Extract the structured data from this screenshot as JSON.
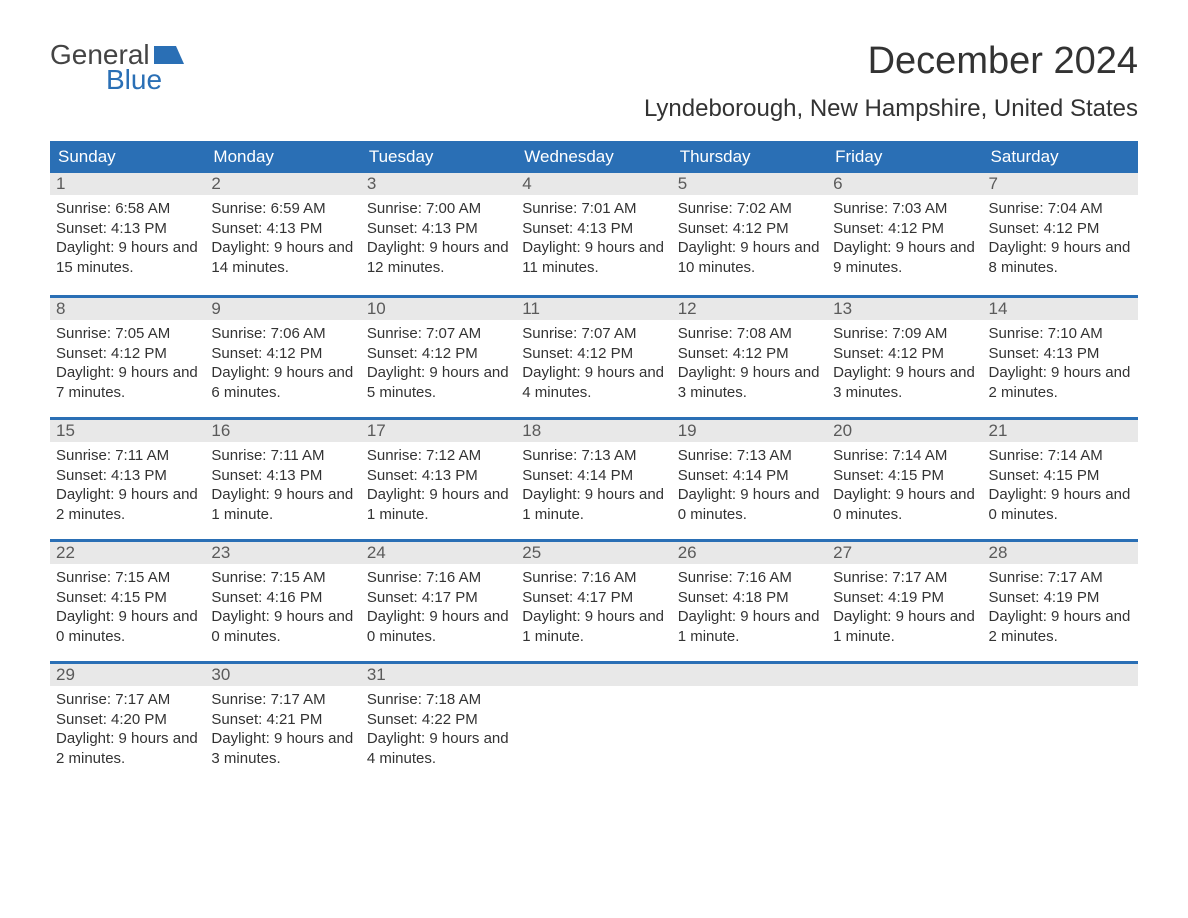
{
  "brand": {
    "text_general": "General",
    "text_blue": "Blue",
    "logo_color": "#2a6fb5",
    "text_color": "#444444"
  },
  "title": "December 2024",
  "location": "Lyndeborough, New Hampshire, United States",
  "colors": {
    "header_bg": "#2a6fb5",
    "header_fg": "#ffffff",
    "daynum_bg": "#e8e8e8",
    "daynum_fg": "#5a5a5a",
    "body_fg": "#333333",
    "page_bg": "#ffffff",
    "week_border": "#2a6fb5"
  },
  "fonts": {
    "title_size": 38,
    "location_size": 24,
    "dayheader_size": 17,
    "daynum_size": 17,
    "body_size": 15
  },
  "day_headers": [
    "Sunday",
    "Monday",
    "Tuesday",
    "Wednesday",
    "Thursday",
    "Friday",
    "Saturday"
  ],
  "weeks": [
    [
      {
        "n": "1",
        "sunrise": "Sunrise: 6:58 AM",
        "sunset": "Sunset: 4:13 PM",
        "daylight": "Daylight: 9 hours and 15 minutes."
      },
      {
        "n": "2",
        "sunrise": "Sunrise: 6:59 AM",
        "sunset": "Sunset: 4:13 PM",
        "daylight": "Daylight: 9 hours and 14 minutes."
      },
      {
        "n": "3",
        "sunrise": "Sunrise: 7:00 AM",
        "sunset": "Sunset: 4:13 PM",
        "daylight": "Daylight: 9 hours and 12 minutes."
      },
      {
        "n": "4",
        "sunrise": "Sunrise: 7:01 AM",
        "sunset": "Sunset: 4:13 PM",
        "daylight": "Daylight: 9 hours and 11 minutes."
      },
      {
        "n": "5",
        "sunrise": "Sunrise: 7:02 AM",
        "sunset": "Sunset: 4:12 PM",
        "daylight": "Daylight: 9 hours and 10 minutes."
      },
      {
        "n": "6",
        "sunrise": "Sunrise: 7:03 AM",
        "sunset": "Sunset: 4:12 PM",
        "daylight": "Daylight: 9 hours and 9 minutes."
      },
      {
        "n": "7",
        "sunrise": "Sunrise: 7:04 AM",
        "sunset": "Sunset: 4:12 PM",
        "daylight": "Daylight: 9 hours and 8 minutes."
      }
    ],
    [
      {
        "n": "8",
        "sunrise": "Sunrise: 7:05 AM",
        "sunset": "Sunset: 4:12 PM",
        "daylight": "Daylight: 9 hours and 7 minutes."
      },
      {
        "n": "9",
        "sunrise": "Sunrise: 7:06 AM",
        "sunset": "Sunset: 4:12 PM",
        "daylight": "Daylight: 9 hours and 6 minutes."
      },
      {
        "n": "10",
        "sunrise": "Sunrise: 7:07 AM",
        "sunset": "Sunset: 4:12 PM",
        "daylight": "Daylight: 9 hours and 5 minutes."
      },
      {
        "n": "11",
        "sunrise": "Sunrise: 7:07 AM",
        "sunset": "Sunset: 4:12 PM",
        "daylight": "Daylight: 9 hours and 4 minutes."
      },
      {
        "n": "12",
        "sunrise": "Sunrise: 7:08 AM",
        "sunset": "Sunset: 4:12 PM",
        "daylight": "Daylight: 9 hours and 3 minutes."
      },
      {
        "n": "13",
        "sunrise": "Sunrise: 7:09 AM",
        "sunset": "Sunset: 4:12 PM",
        "daylight": "Daylight: 9 hours and 3 minutes."
      },
      {
        "n": "14",
        "sunrise": "Sunrise: 7:10 AM",
        "sunset": "Sunset: 4:13 PM",
        "daylight": "Daylight: 9 hours and 2 minutes."
      }
    ],
    [
      {
        "n": "15",
        "sunrise": "Sunrise: 7:11 AM",
        "sunset": "Sunset: 4:13 PM",
        "daylight": "Daylight: 9 hours and 2 minutes."
      },
      {
        "n": "16",
        "sunrise": "Sunrise: 7:11 AM",
        "sunset": "Sunset: 4:13 PM",
        "daylight": "Daylight: 9 hours and 1 minute."
      },
      {
        "n": "17",
        "sunrise": "Sunrise: 7:12 AM",
        "sunset": "Sunset: 4:13 PM",
        "daylight": "Daylight: 9 hours and 1 minute."
      },
      {
        "n": "18",
        "sunrise": "Sunrise: 7:13 AM",
        "sunset": "Sunset: 4:14 PM",
        "daylight": "Daylight: 9 hours and 1 minute."
      },
      {
        "n": "19",
        "sunrise": "Sunrise: 7:13 AM",
        "sunset": "Sunset: 4:14 PM",
        "daylight": "Daylight: 9 hours and 0 minutes."
      },
      {
        "n": "20",
        "sunrise": "Sunrise: 7:14 AM",
        "sunset": "Sunset: 4:15 PM",
        "daylight": "Daylight: 9 hours and 0 minutes."
      },
      {
        "n": "21",
        "sunrise": "Sunrise: 7:14 AM",
        "sunset": "Sunset: 4:15 PM",
        "daylight": "Daylight: 9 hours and 0 minutes."
      }
    ],
    [
      {
        "n": "22",
        "sunrise": "Sunrise: 7:15 AM",
        "sunset": "Sunset: 4:15 PM",
        "daylight": "Daylight: 9 hours and 0 minutes."
      },
      {
        "n": "23",
        "sunrise": "Sunrise: 7:15 AM",
        "sunset": "Sunset: 4:16 PM",
        "daylight": "Daylight: 9 hours and 0 minutes."
      },
      {
        "n": "24",
        "sunrise": "Sunrise: 7:16 AM",
        "sunset": "Sunset: 4:17 PM",
        "daylight": "Daylight: 9 hours and 0 minutes."
      },
      {
        "n": "25",
        "sunrise": "Sunrise: 7:16 AM",
        "sunset": "Sunset: 4:17 PM",
        "daylight": "Daylight: 9 hours and 1 minute."
      },
      {
        "n": "26",
        "sunrise": "Sunrise: 7:16 AM",
        "sunset": "Sunset: 4:18 PM",
        "daylight": "Daylight: 9 hours and 1 minute."
      },
      {
        "n": "27",
        "sunrise": "Sunrise: 7:17 AM",
        "sunset": "Sunset: 4:19 PM",
        "daylight": "Daylight: 9 hours and 1 minute."
      },
      {
        "n": "28",
        "sunrise": "Sunrise: 7:17 AM",
        "sunset": "Sunset: 4:19 PM",
        "daylight": "Daylight: 9 hours and 2 minutes."
      }
    ],
    [
      {
        "n": "29",
        "sunrise": "Sunrise: 7:17 AM",
        "sunset": "Sunset: 4:20 PM",
        "daylight": "Daylight: 9 hours and 2 minutes."
      },
      {
        "n": "30",
        "sunrise": "Sunrise: 7:17 AM",
        "sunset": "Sunset: 4:21 PM",
        "daylight": "Daylight: 9 hours and 3 minutes."
      },
      {
        "n": "31",
        "sunrise": "Sunrise: 7:18 AM",
        "sunset": "Sunset: 4:22 PM",
        "daylight": "Daylight: 9 hours and 4 minutes."
      },
      {
        "empty": true
      },
      {
        "empty": true
      },
      {
        "empty": true
      },
      {
        "empty": true
      }
    ]
  ]
}
